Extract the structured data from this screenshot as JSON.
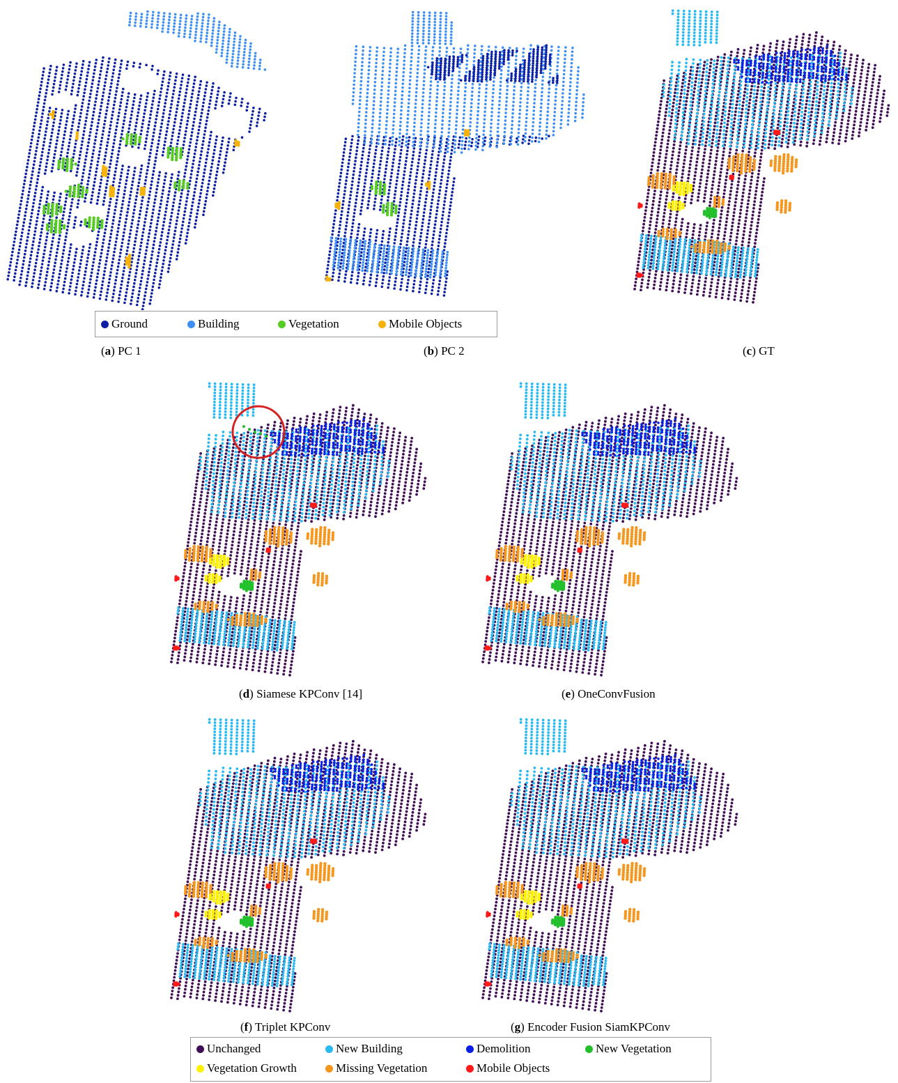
{
  "figure": {
    "top_legend": {
      "items": [
        {
          "label": "Ground",
          "color": "#0d1fa0"
        },
        {
          "label": "Building",
          "color": "#3d8ff2"
        },
        {
          "label": "Vegetation",
          "color": "#55cc22"
        },
        {
          "label": "Mobile Objects",
          "color": "#f5b20a"
        }
      ]
    },
    "panels": [
      {
        "id": "a",
        "label": "a",
        "caption": "PC 1",
        "kind": "pc1"
      },
      {
        "id": "b",
        "label": "b",
        "caption": "PC 2",
        "kind": "pc2"
      },
      {
        "id": "c",
        "label": "c",
        "caption": "GT",
        "kind": "change"
      },
      {
        "id": "d",
        "label": "d",
        "caption": "Siamese KPConv [14]",
        "kind": "change"
      },
      {
        "id": "e",
        "label": "e",
        "caption": "OneConvFusion",
        "kind": "change"
      },
      {
        "id": "f",
        "label": "f",
        "caption": "Triplet KPConv",
        "kind": "change"
      },
      {
        "id": "g",
        "label": "g",
        "caption": "Encoder Fusion SiamKPConv",
        "kind": "change"
      }
    ],
    "bottom_legend": {
      "items": [
        {
          "label": "Unchanged",
          "color": "#3f0f55"
        },
        {
          "label": "New Building",
          "color": "#29baf2"
        },
        {
          "label": "Demolition",
          "color": "#0a1fe6"
        },
        {
          "label": "New Vegetation",
          "color": "#22c12c"
        },
        {
          "label": "Vegetation Growth",
          "color": "#fff200"
        },
        {
          "label": "Missing Vegetation",
          "color": "#f5961e"
        },
        {
          "label": "Mobile Objects",
          "color": "#ff1a1a"
        }
      ]
    },
    "highlight_circle_color": "#d42020"
  }
}
